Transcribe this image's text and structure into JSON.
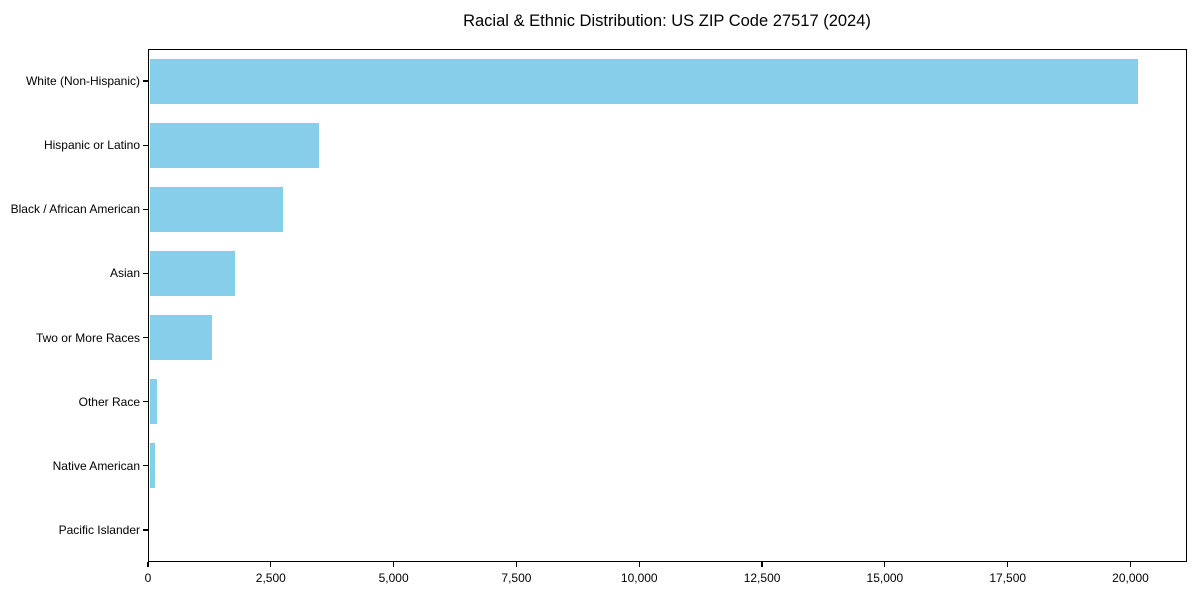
{
  "figure": {
    "title": "Racial & Ethnic Distribution: US ZIP Code 27517 (2024)",
    "background_color": "#ffffff",
    "text_color": "#000000"
  },
  "chart_data": {
    "type": "bar",
    "orientation": "horizontal",
    "title": "Racial & Ethnic Distribution: US ZIP Code 27517 (2024)",
    "xlabel": "",
    "ylabel": "",
    "grid": false,
    "legend": null,
    "bar_color": "#87CEEB",
    "xlim": [
      0,
      21150
    ],
    "categories": [
      "White (Non-Hispanic)",
      "Hispanic or Latino",
      "Black / African American",
      "Asian",
      "Two or More Races",
      "Other Race",
      "Native American",
      "Pacific Islander"
    ],
    "values": [
      20120,
      3450,
      2710,
      1750,
      1280,
      150,
      120,
      0
    ],
    "x_ticks": [
      {
        "value": 0,
        "label": "0"
      },
      {
        "value": 2500,
        "label": "2,500"
      },
      {
        "value": 5000,
        "label": "5,000"
      },
      {
        "value": 7500,
        "label": "7,500"
      },
      {
        "value": 10000,
        "label": "10,000"
      },
      {
        "value": 12500,
        "label": "12,500"
      },
      {
        "value": 15000,
        "label": "15,000"
      },
      {
        "value": 17500,
        "label": "17,500"
      },
      {
        "value": 20000,
        "label": "20,000"
      }
    ]
  }
}
